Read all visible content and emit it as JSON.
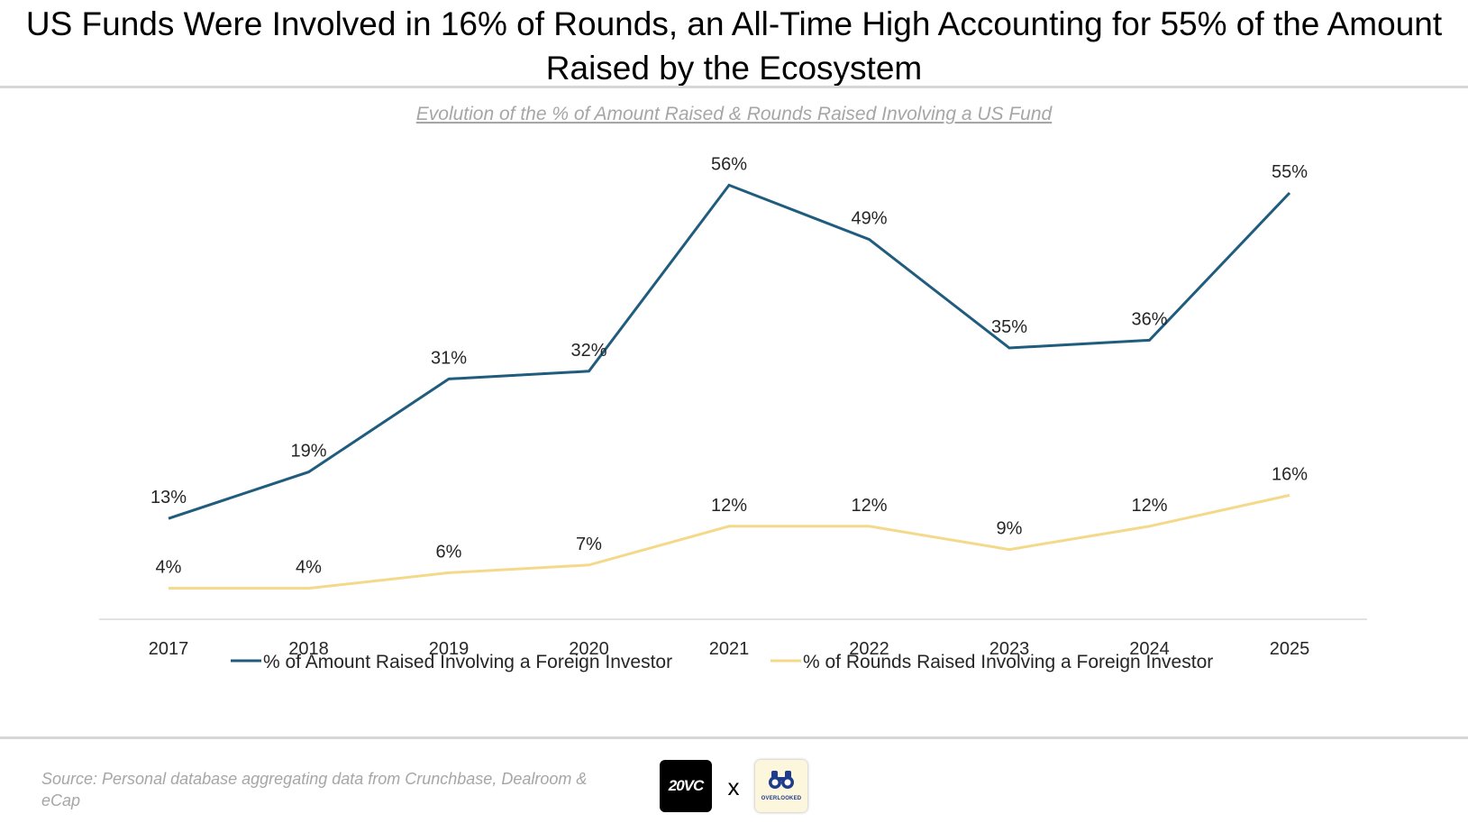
{
  "page": {
    "title": "US Funds Were Involved in 16% of Rounds, an All-Time High Accounting for 55% of the Amount Raised by the Ecosystem"
  },
  "chart_data": {
    "type": "line",
    "title": "US Funds Were Involved in 16% of Rounds, an All-Time High Accounting for 55% of the Amount Raised by the Ecosystem",
    "subtitle": "Evolution of the % of Amount Raised & Rounds Raised Involving a US Fund",
    "categories": [
      "2017",
      "2018",
      "2019",
      "2020",
      "2021",
      "2022",
      "2023",
      "2024",
      "2025"
    ],
    "series": [
      {
        "name": "% of Amount Raised Involving a Foreign Investor",
        "values": [
          13,
          19,
          31,
          32,
          56,
          49,
          35,
          36,
          55
        ],
        "labels": [
          "13%",
          "19%",
          "31%",
          "32%",
          "56%",
          "49%",
          "35%",
          "36%",
          "55%"
        ],
        "color": "#1f5c7d"
      },
      {
        "name": "% of Rounds Raised Involving a Foreign Investor",
        "values": [
          4,
          4,
          6,
          7,
          12,
          12,
          9,
          12,
          16
        ],
        "labels": [
          "4%",
          "4%",
          "6%",
          "7%",
          "12%",
          "12%",
          "9%",
          "12%",
          "16%"
        ],
        "color": "#f5d98a"
      }
    ],
    "xlabel": "",
    "ylabel": "",
    "ylim": [
      0,
      60
    ],
    "grid": false,
    "legend": "bottom",
    "axis_color": "#d9d9d9"
  },
  "footer": {
    "source": "Source: Personal database aggregating data from Crunchbase, Dealroom & eCap",
    "logo_left": "20VC",
    "separator": "x",
    "logo_right_text": "OVERLOOKED",
    "logo_right_icon": "binoculars-icon"
  }
}
